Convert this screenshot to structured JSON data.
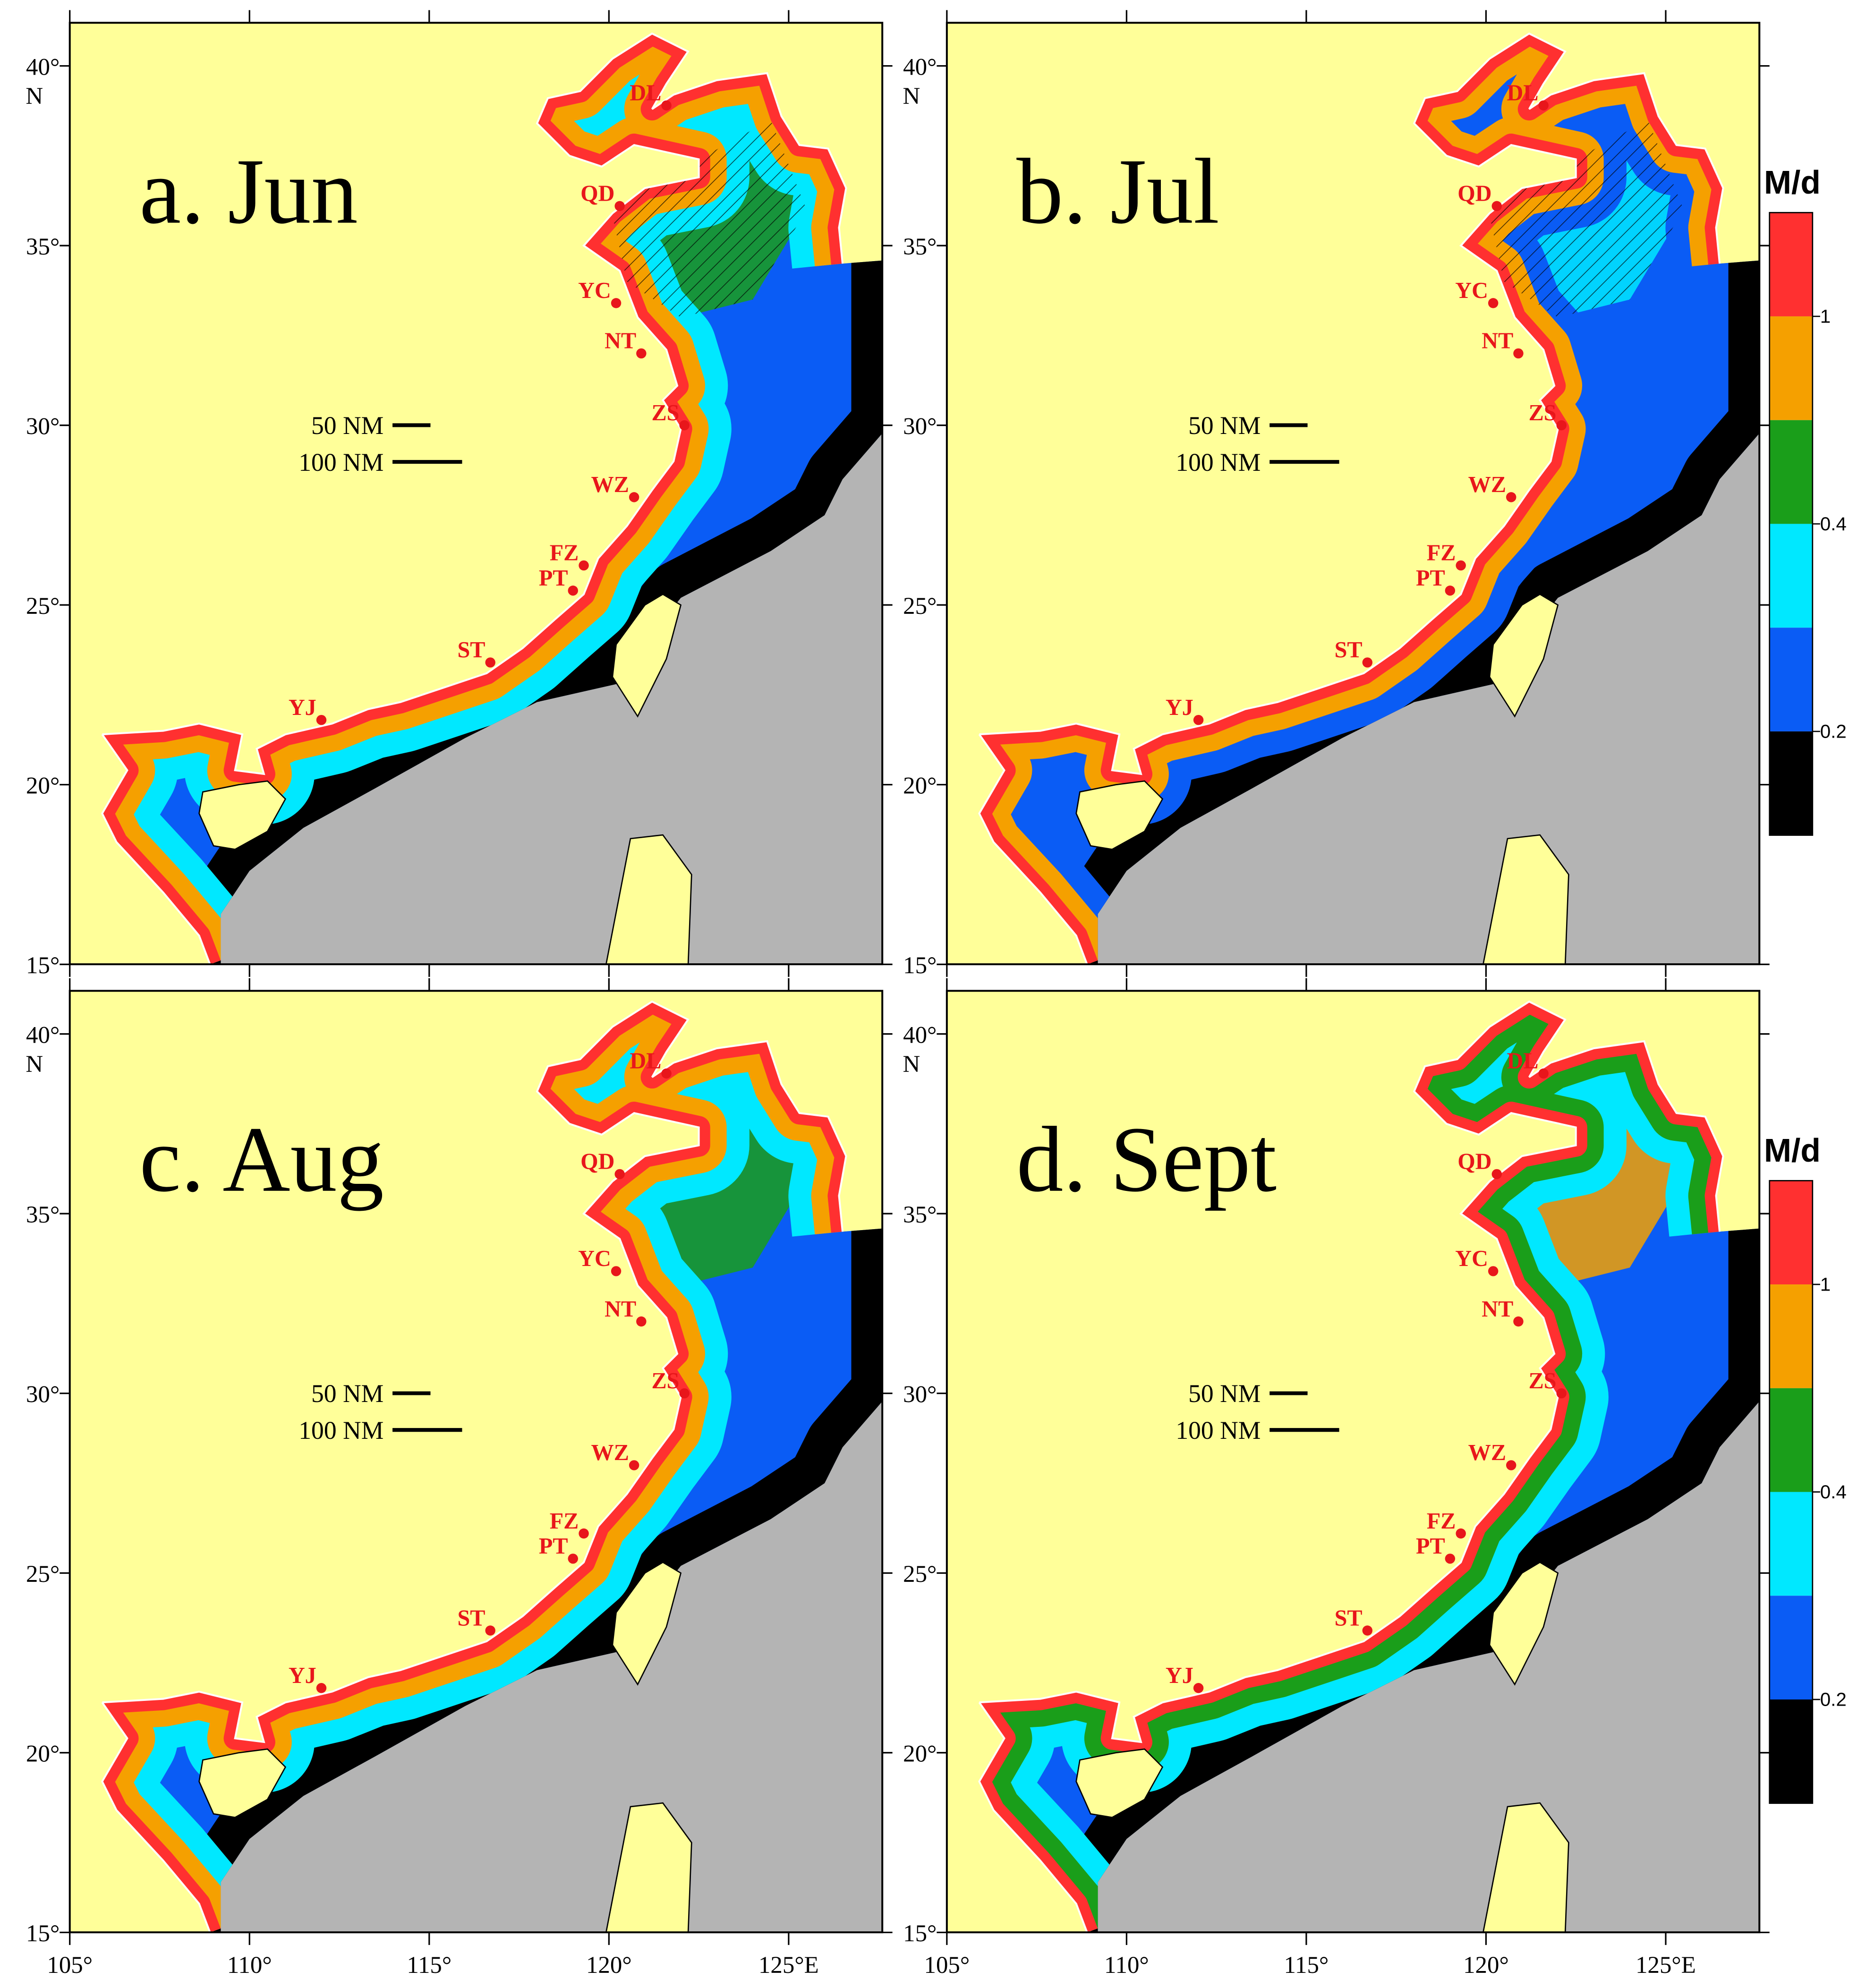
{
  "panels": [
    {
      "label": "a. Jun",
      "scale_bar": [
        "50 NM",
        "100 NM"
      ]
    },
    {
      "label": "b. Jul",
      "scale_bar": [
        "50 NM",
        "100 NM"
      ]
    },
    {
      "label": "c. Aug",
      "scale_bar": [
        "50 NM",
        "100 NM"
      ]
    },
    {
      "label": "d. Sept",
      "scale_bar": [
        "50 NM",
        "100 NM"
      ]
    }
  ],
  "cities": [
    "DL",
    "QD",
    "YC",
    "NT",
    "ZS",
    "WZ",
    "FZ",
    "PT",
    "ST",
    "YJ"
  ],
  "lat_ticks": [
    "15°",
    "20°",
    "25°",
    "30°",
    "35°",
    "40°"
  ],
  "lat_unit": "N",
  "lon_ticks": [
    "105°",
    "110°",
    "115°",
    "120°",
    "125°E"
  ],
  "colorbar": {
    "title": "M/d",
    "labels": [
      "1",
      "0.4",
      "0.2"
    ]
  }
}
